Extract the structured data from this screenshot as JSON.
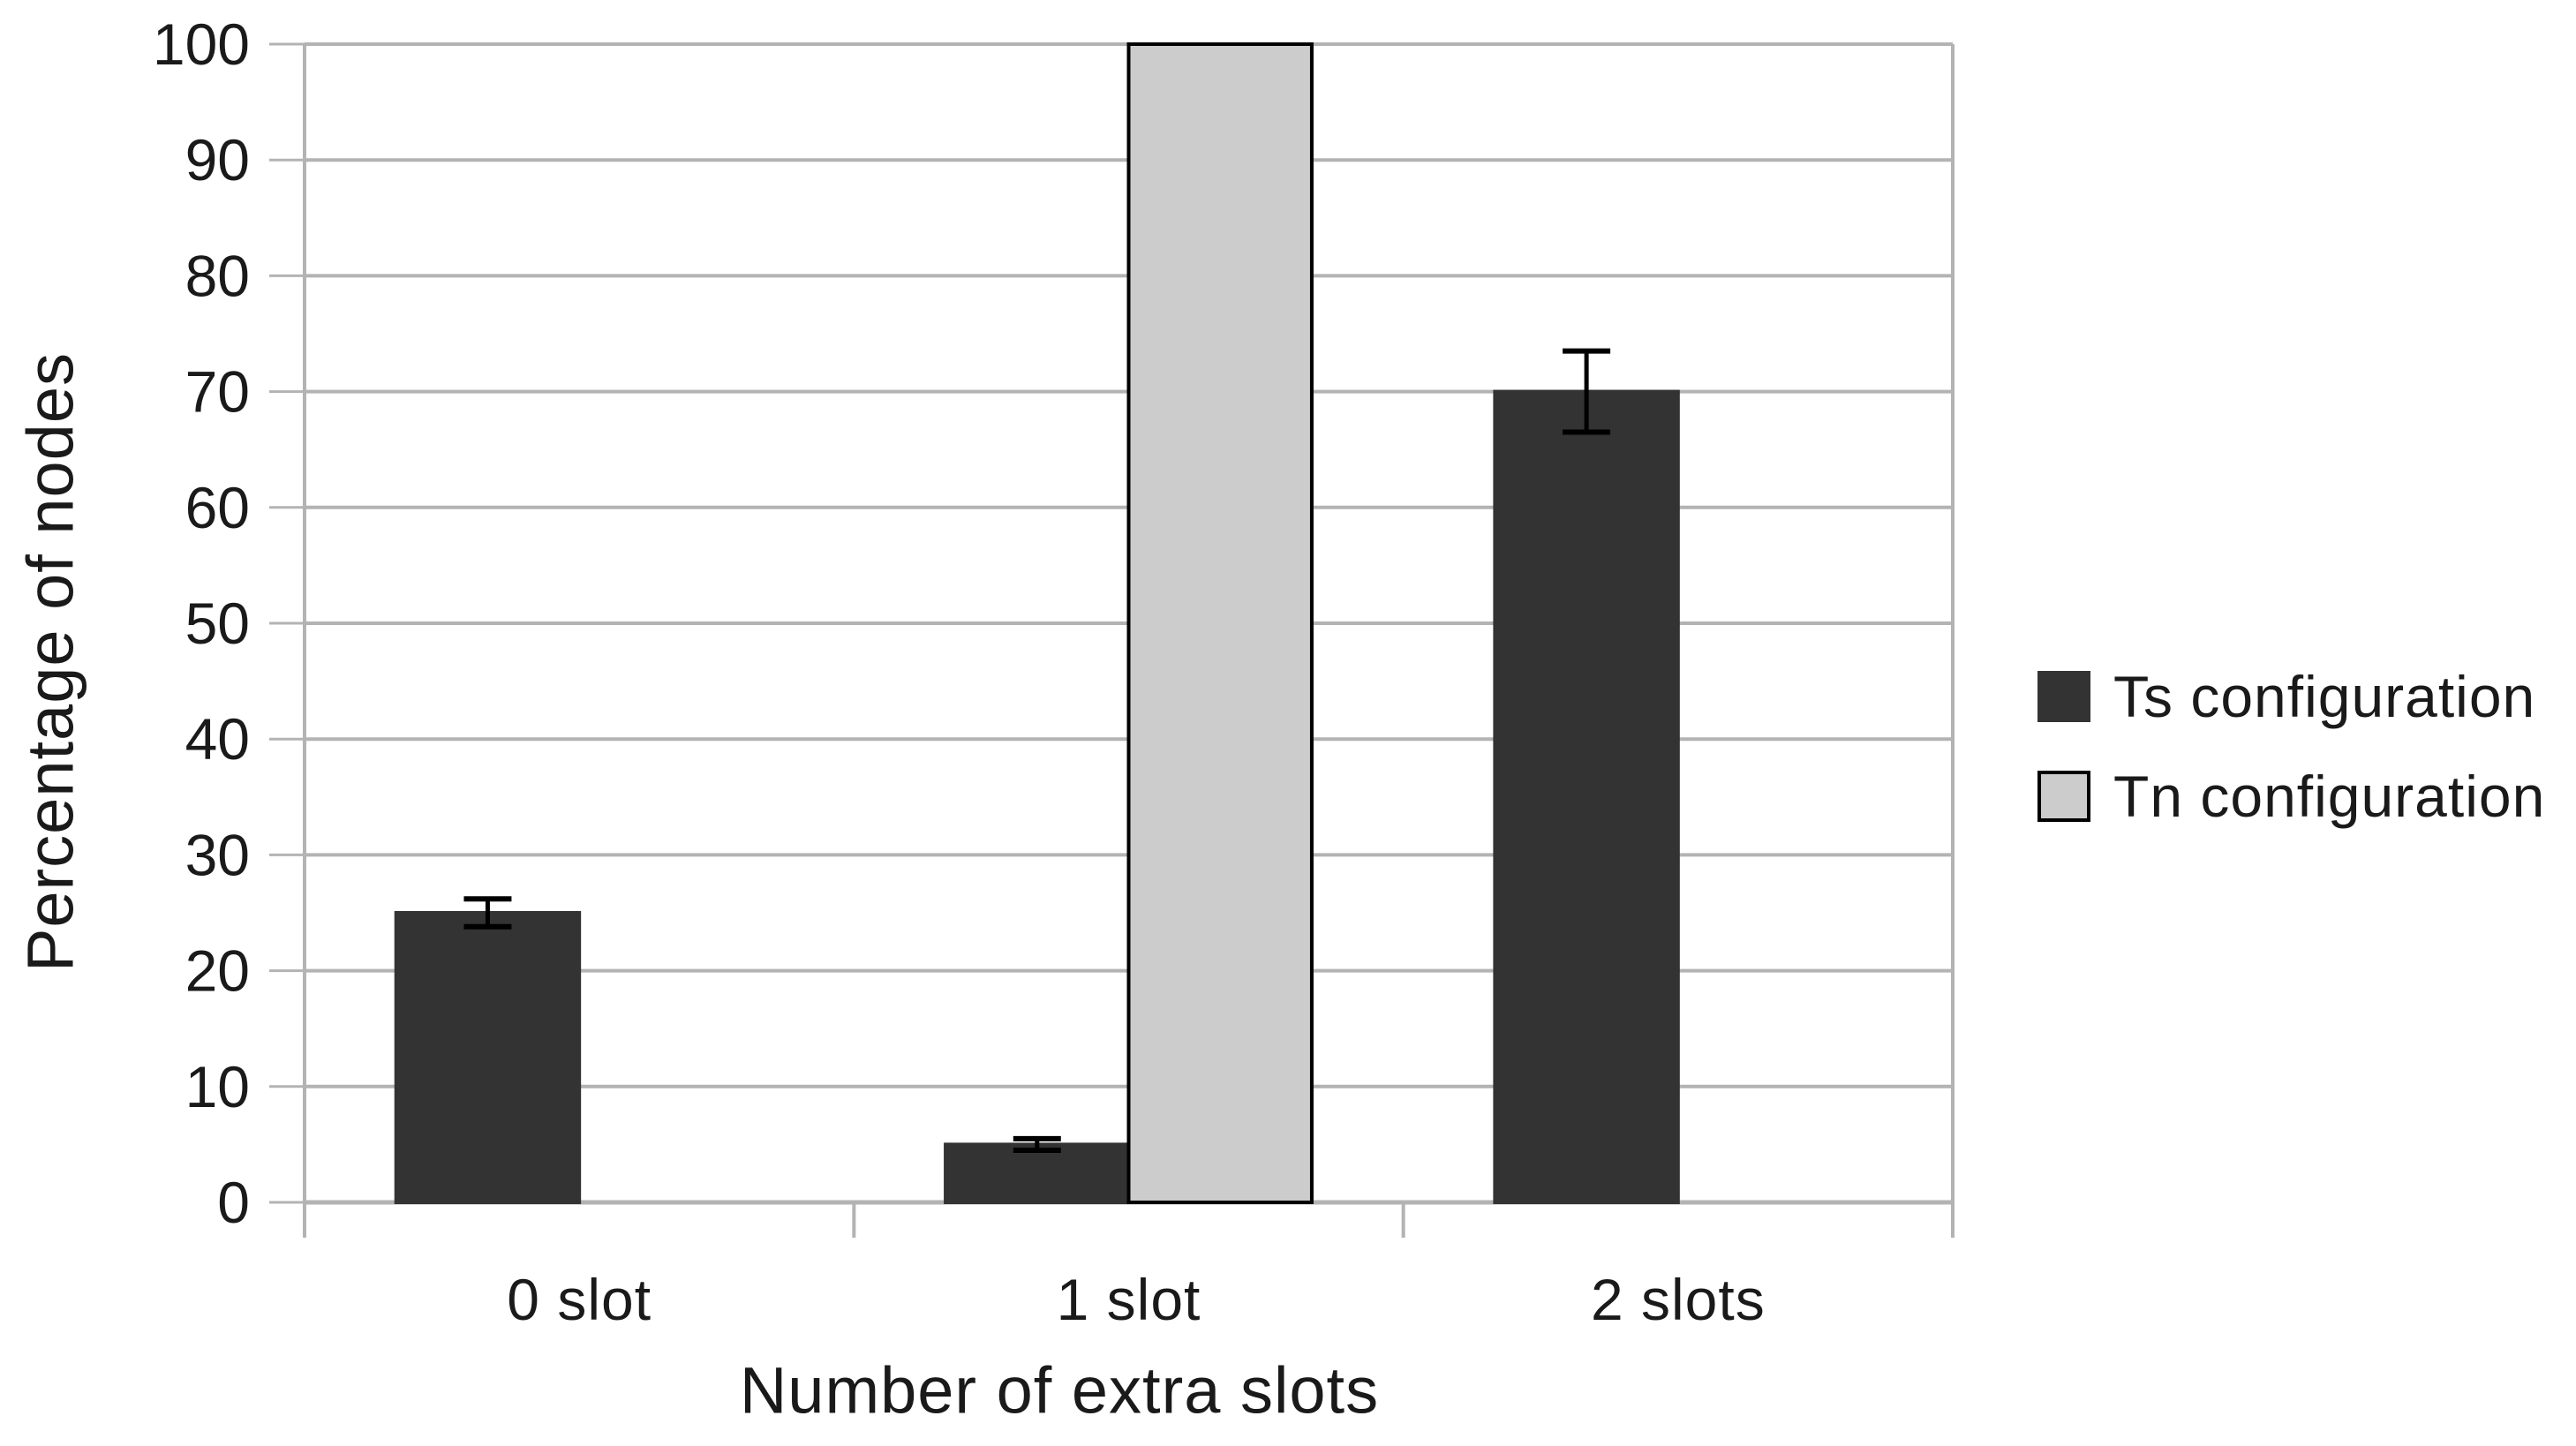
{
  "page": {
    "background_color": "#ffffff"
  },
  "chart_data": {
    "type": "bar",
    "title": "",
    "xlabel": "Number of extra slots",
    "ylabel": "Percentage of nodes",
    "categories": [
      "0 slot",
      "1 slot",
      "2 slots"
    ],
    "series": [
      {
        "name": "Ts configuration",
        "color": "#333333",
        "border_color": "#333333",
        "values": [
          25,
          5,
          70
        ],
        "errors": [
          1.2,
          0.5,
          3.5
        ]
      },
      {
        "name": "Tn configuration",
        "color": "#cccccc",
        "border_color": "#000000",
        "values": [
          0,
          100,
          0
        ],
        "errors": [
          0,
          0,
          0
        ]
      }
    ],
    "ylim": [
      0,
      100
    ],
    "yticks": [
      0,
      10,
      20,
      30,
      40,
      50,
      60,
      70,
      80,
      90,
      100
    ],
    "grid": true,
    "gridline_color": "#b3b3b3",
    "axis_color": "#b3b3b3",
    "error_bar_color": "#000000",
    "text_color": "#1a1a1a",
    "legend_position": "right"
  }
}
